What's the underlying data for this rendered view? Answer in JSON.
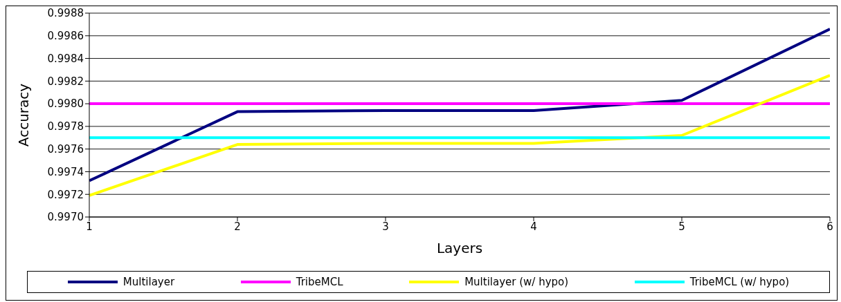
{
  "chart_data": {
    "type": "line",
    "xlabel": "Layers",
    "ylabel": "Accuracy",
    "x": [
      1,
      2,
      3,
      4,
      5,
      6
    ],
    "xlim": [
      1,
      6
    ],
    "xticks": [
      1,
      2,
      3,
      4,
      5,
      6
    ],
    "ylim": [
      0.997,
      0.9988
    ],
    "yticks": [
      {
        "value": 0.997,
        "label": "0.9970"
      },
      {
        "value": 0.9972,
        "label": "0.9972"
      },
      {
        "value": 0.9974,
        "label": "0.9974"
      },
      {
        "value": 0.9976,
        "label": "0.9976"
      },
      {
        "value": 0.9978,
        "label": "0.9978"
      },
      {
        "value": 0.998,
        "label": "0.9980"
      },
      {
        "value": 0.9982,
        "label": "0.9982"
      },
      {
        "value": 0.9984,
        "label": "0.9984"
      },
      {
        "value": 0.9986,
        "label": "0.9986"
      },
      {
        "value": 0.9988,
        "label": "0.9988"
      }
    ],
    "grid": "y",
    "legend": "bottom",
    "marker": "none",
    "line_style": "solid",
    "series": [
      {
        "name": "Multilayer",
        "color": "#000080",
        "values": [
          0.99732,
          0.99793,
          0.99794,
          0.99794,
          0.99803,
          0.99866
        ]
      },
      {
        "name": "TribeMCL",
        "color": "#ff00ff",
        "values": [
          0.998,
          0.998,
          0.998,
          0.998,
          0.998,
          0.998
        ]
      },
      {
        "name": "Multilayer (w/ hypo)",
        "color": "#ffff00",
        "values": [
          0.99719,
          0.99764,
          0.99765,
          0.99765,
          0.99772,
          0.99825
        ]
      },
      {
        "name": "TribeMCL (w/ hypo)",
        "color": "#00ffff",
        "values": [
          0.9977,
          0.9977,
          0.9977,
          0.9977,
          0.9977,
          0.9977
        ]
      }
    ]
  }
}
